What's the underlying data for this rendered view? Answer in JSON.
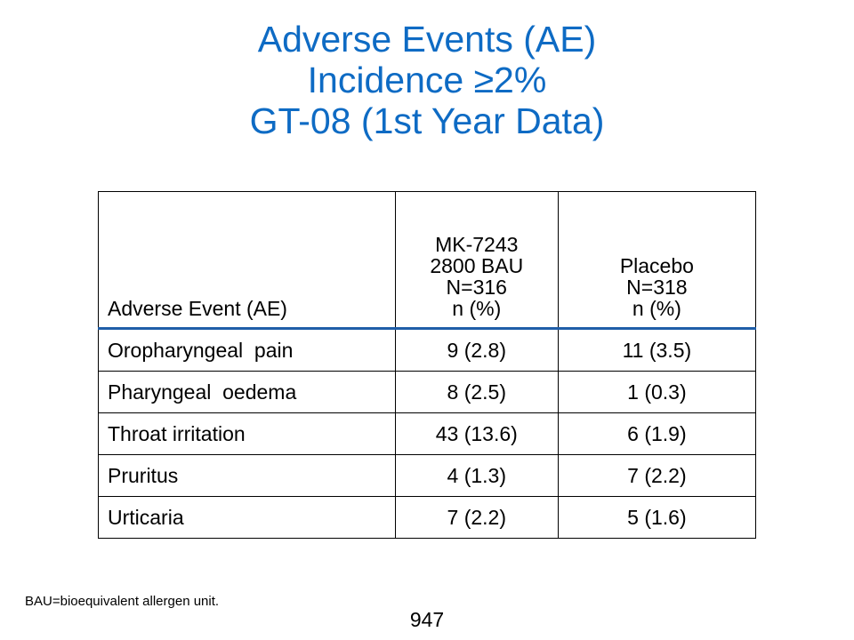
{
  "title": {
    "line1": "Adverse Events (AE)",
    "line2": "Incidence ≥2%",
    "line3": "GT-08 (1st Year Data)"
  },
  "colors": {
    "title": "#0e6bc4",
    "header_rule": "#1f5ea8"
  },
  "table": {
    "headers": {
      "adverse_event": "Adverse Event (AE)",
      "mk": [
        "MK-7243",
        "2800 BAU",
        "N=316",
        "n (%)"
      ],
      "placebo": [
        "Placebo",
        "N=318",
        "n (%)"
      ]
    },
    "rows": [
      {
        "event": "Oropharyngeal  pain",
        "mk": "9 (2.8)",
        "placebo": "11 (3.5)"
      },
      {
        "event": "Pharyngeal  oedema",
        "mk": "8 (2.5)",
        "placebo": "1 (0.3)"
      },
      {
        "event": "Throat irritation",
        "mk": "43 (13.6)",
        "placebo": "6 (1.9)"
      },
      {
        "event": "Pruritus",
        "mk": "4 (1.3)",
        "placebo": "7 (2.2)"
      },
      {
        "event": "Urticaria",
        "mk": "7 (2.2)",
        "placebo": "5 (1.6)"
      }
    ]
  },
  "footnote": "BAU=bioequivalent allergen unit.",
  "page_number": "947"
}
